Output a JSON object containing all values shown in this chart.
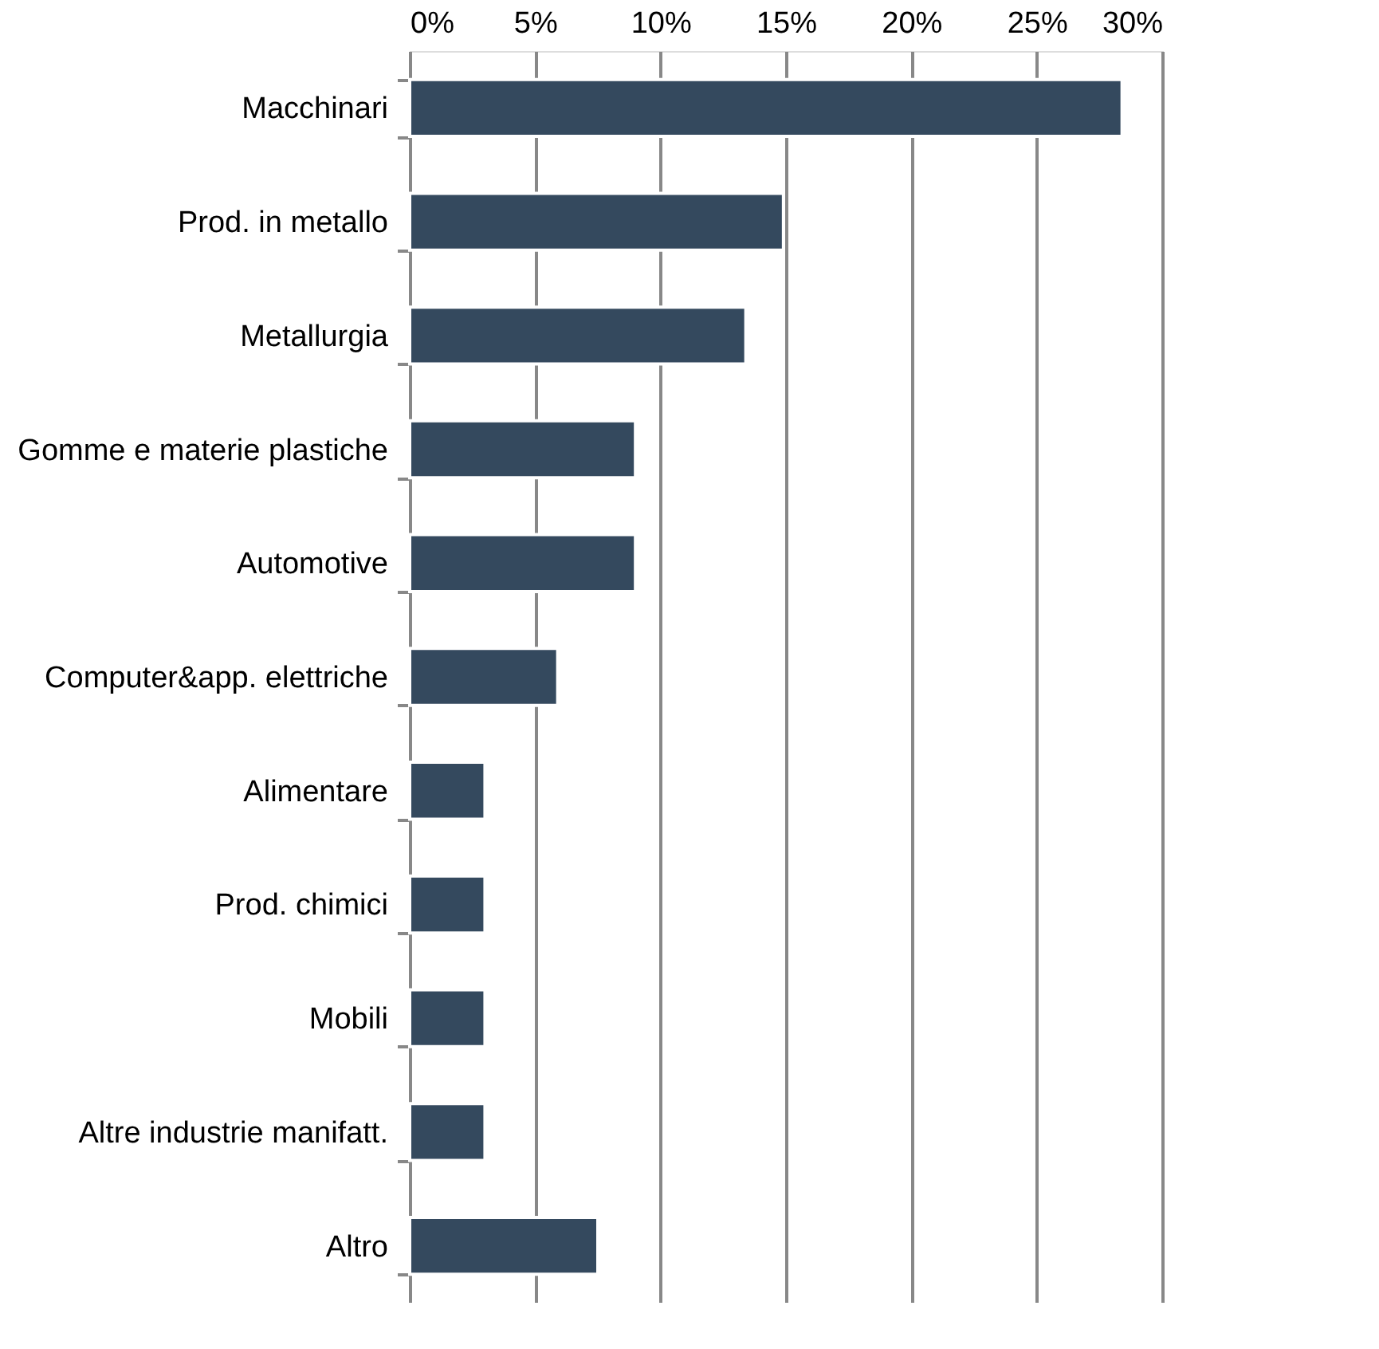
{
  "chart_data": {
    "type": "bar",
    "orientation": "horizontal",
    "categories": [
      "Macchinari",
      "Prod. in metallo",
      "Metallurgia",
      "Gomme e materie plastiche",
      "Automotive",
      "Computer&app. elettriche",
      "Alimentare",
      "Prod. chimici",
      "Mobili",
      "Altre industrie manifatt.",
      "Altro"
    ],
    "values": [
      28.4,
      14.9,
      13.4,
      9.0,
      9.0,
      5.9,
      3.0,
      3.0,
      3.0,
      3.0,
      7.5
    ],
    "color": "#34495e",
    "xlim": [
      0,
      30
    ],
    "xticks": [
      {
        "value": 0,
        "label": "0%"
      },
      {
        "value": 5,
        "label": "5%"
      },
      {
        "value": 10,
        "label": "10%"
      },
      {
        "value": 15,
        "label": "15%"
      },
      {
        "value": 20,
        "label": "20%"
      },
      {
        "value": 25,
        "label": "25%"
      },
      {
        "value": 30,
        "label": "30%"
      }
    ],
    "grid": "x"
  }
}
